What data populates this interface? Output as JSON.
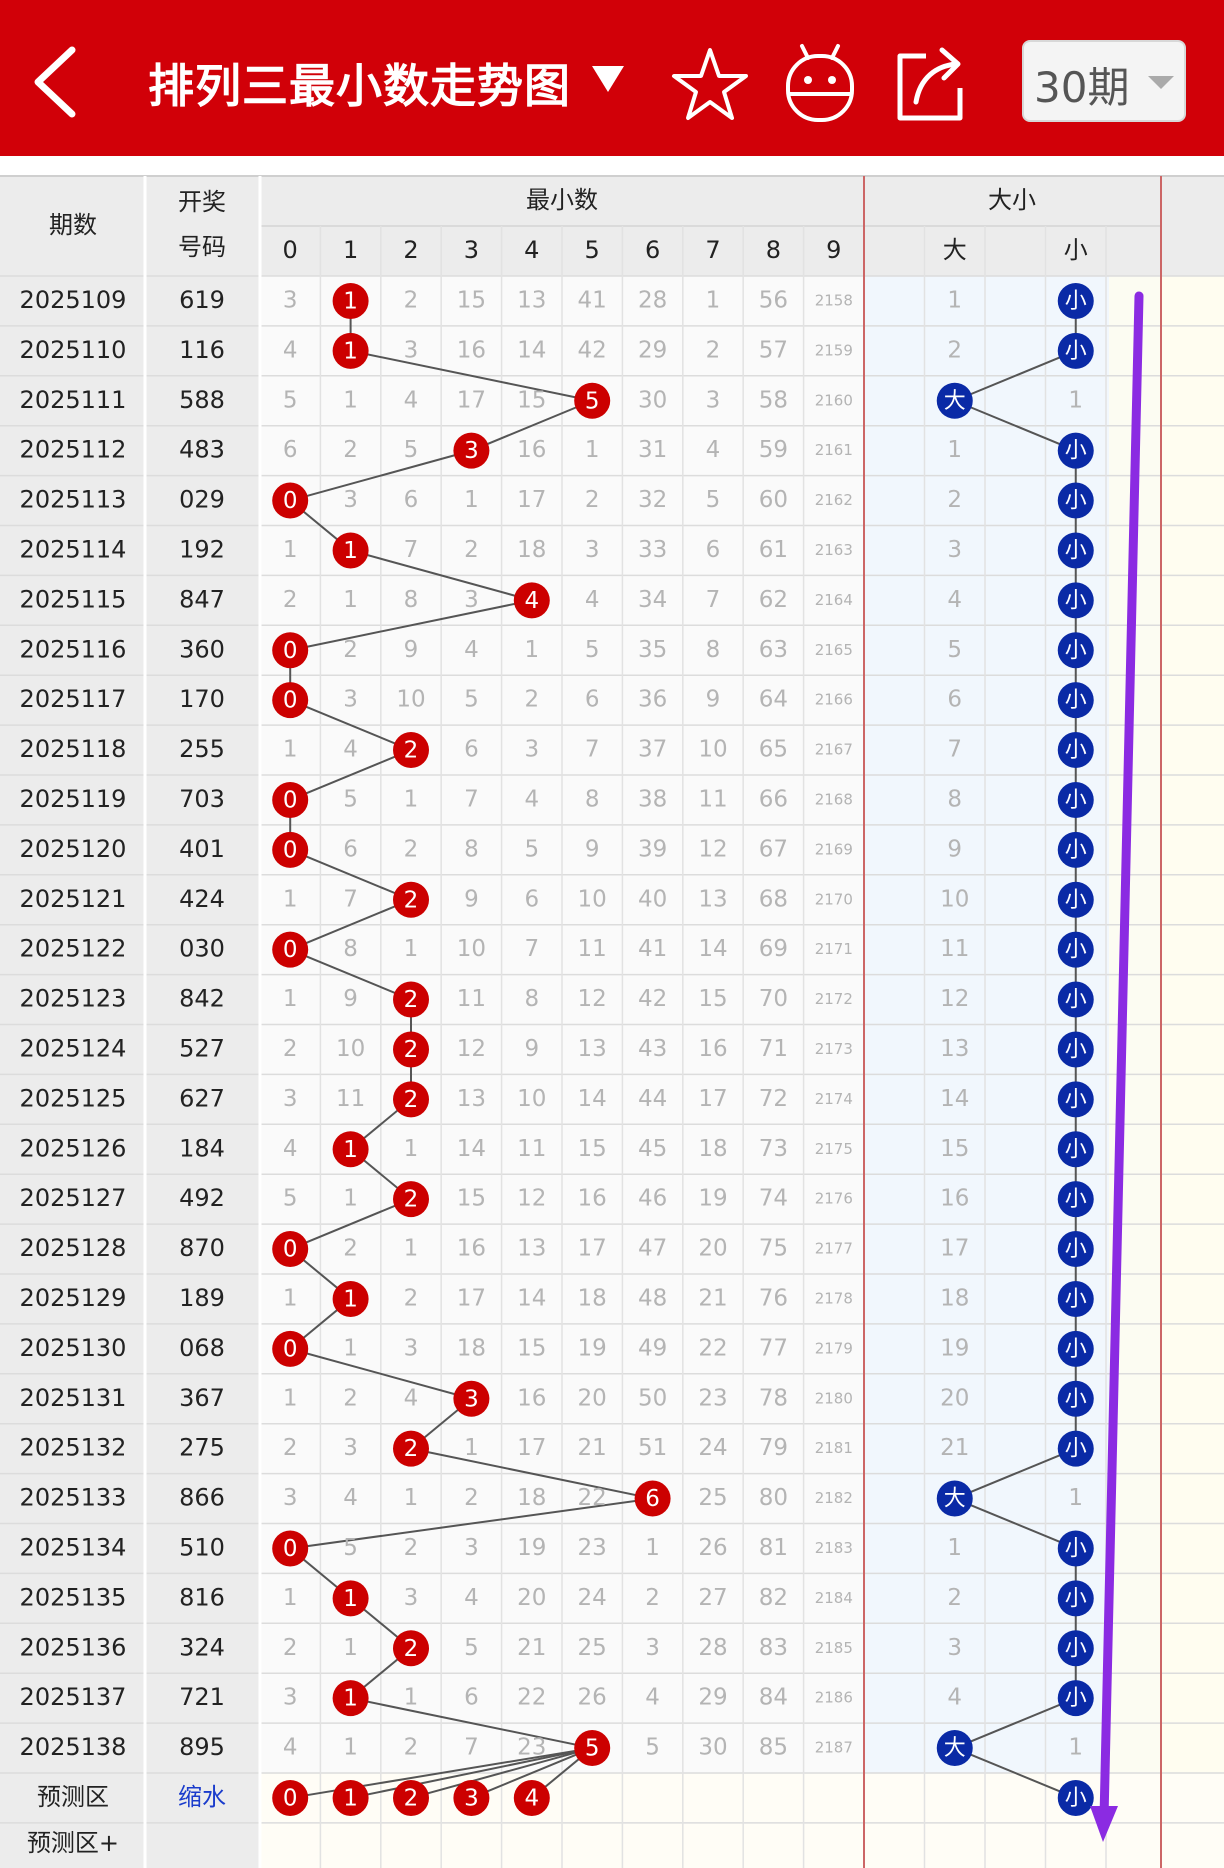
{
  "header": {
    "title": "排列三最小数走势图",
    "period_select": "30期",
    "icons": [
      "back-arrow-icon",
      "dropdown-triangle-icon",
      "star-icon",
      "robot-icon",
      "share-icon"
    ]
  },
  "table": {
    "col_period": "期数",
    "col_draw_1": "开奖",
    "col_draw_2": "号码",
    "group_min": "最小数",
    "group_size": "大小",
    "digit_headers": [
      "0",
      "1",
      "2",
      "3",
      "4",
      "5",
      "6",
      "7",
      "8",
      "9"
    ],
    "size_headers": [
      "大",
      "小"
    ],
    "big_label": "大",
    "small_label": "小",
    "rows": [
      {
        "period": "2025109",
        "draw": "619",
        "min": 1,
        "cells": [
          "3",
          "1",
          "2",
          "15",
          "13",
          "41",
          "28",
          "1",
          "56",
          "2158"
        ],
        "size": "small",
        "big_miss": "1",
        "small_miss": "小"
      },
      {
        "period": "2025110",
        "draw": "116",
        "min": 1,
        "cells": [
          "4",
          "1",
          "3",
          "16",
          "14",
          "42",
          "29",
          "2",
          "57",
          "2159"
        ],
        "size": "small",
        "big_miss": "2",
        "small_miss": "小"
      },
      {
        "period": "2025111",
        "draw": "588",
        "min": 5,
        "cells": [
          "5",
          "1",
          "4",
          "17",
          "15",
          "5",
          "30",
          "3",
          "58",
          "2160"
        ],
        "size": "big",
        "big_miss": "大",
        "small_miss": "1"
      },
      {
        "period": "2025112",
        "draw": "483",
        "min": 3,
        "cells": [
          "6",
          "2",
          "5",
          "3",
          "16",
          "1",
          "31",
          "4",
          "59",
          "2161"
        ],
        "size": "small",
        "big_miss": "1",
        "small_miss": "小"
      },
      {
        "period": "2025113",
        "draw": "029",
        "min": 0,
        "cells": [
          "0",
          "3",
          "6",
          "1",
          "17",
          "2",
          "32",
          "5",
          "60",
          "2162"
        ],
        "size": "small",
        "big_miss": "2",
        "small_miss": "小"
      },
      {
        "period": "2025114",
        "draw": "192",
        "min": 1,
        "cells": [
          "1",
          "1",
          "7",
          "2",
          "18",
          "3",
          "33",
          "6",
          "61",
          "2163"
        ],
        "size": "small",
        "big_miss": "3",
        "small_miss": "小"
      },
      {
        "period": "2025115",
        "draw": "847",
        "min": 4,
        "cells": [
          "2",
          "1",
          "8",
          "3",
          "4",
          "4",
          "34",
          "7",
          "62",
          "2164"
        ],
        "size": "small",
        "big_miss": "4",
        "small_miss": "小"
      },
      {
        "period": "2025116",
        "draw": "360",
        "min": 0,
        "cells": [
          "0",
          "2",
          "9",
          "4",
          "1",
          "5",
          "35",
          "8",
          "63",
          "2165"
        ],
        "size": "small",
        "big_miss": "5",
        "small_miss": "小"
      },
      {
        "period": "2025117",
        "draw": "170",
        "min": 0,
        "cells": [
          "0",
          "3",
          "10",
          "5",
          "2",
          "6",
          "36",
          "9",
          "64",
          "2166"
        ],
        "size": "small",
        "big_miss": "6",
        "small_miss": "小"
      },
      {
        "period": "2025118",
        "draw": "255",
        "min": 2,
        "cells": [
          "1",
          "4",
          "2",
          "6",
          "3",
          "7",
          "37",
          "10",
          "65",
          "2167"
        ],
        "size": "small",
        "big_miss": "7",
        "small_miss": "小"
      },
      {
        "period": "2025119",
        "draw": "703",
        "min": 0,
        "cells": [
          "0",
          "5",
          "1",
          "7",
          "4",
          "8",
          "38",
          "11",
          "66",
          "2168"
        ],
        "size": "small",
        "big_miss": "8",
        "small_miss": "小"
      },
      {
        "period": "2025120",
        "draw": "401",
        "min": 0,
        "cells": [
          "0",
          "6",
          "2",
          "8",
          "5",
          "9",
          "39",
          "12",
          "67",
          "2169"
        ],
        "size": "small",
        "big_miss": "9",
        "small_miss": "小"
      },
      {
        "period": "2025121",
        "draw": "424",
        "min": 2,
        "cells": [
          "1",
          "7",
          "2",
          "9",
          "6",
          "10",
          "40",
          "13",
          "68",
          "2170"
        ],
        "size": "small",
        "big_miss": "10",
        "small_miss": "小"
      },
      {
        "period": "2025122",
        "draw": "030",
        "min": 0,
        "cells": [
          "0",
          "8",
          "1",
          "10",
          "7",
          "11",
          "41",
          "14",
          "69",
          "2171"
        ],
        "size": "small",
        "big_miss": "11",
        "small_miss": "小"
      },
      {
        "period": "2025123",
        "draw": "842",
        "min": 2,
        "cells": [
          "1",
          "9",
          "2",
          "11",
          "8",
          "12",
          "42",
          "15",
          "70",
          "2172"
        ],
        "size": "small",
        "big_miss": "12",
        "small_miss": "小"
      },
      {
        "period": "2025124",
        "draw": "527",
        "min": 2,
        "cells": [
          "2",
          "10",
          "2",
          "12",
          "9",
          "13",
          "43",
          "16",
          "71",
          "2173"
        ],
        "size": "small",
        "big_miss": "13",
        "small_miss": "小"
      },
      {
        "period": "2025125",
        "draw": "627",
        "min": 2,
        "cells": [
          "3",
          "11",
          "2",
          "13",
          "10",
          "14",
          "44",
          "17",
          "72",
          "2174"
        ],
        "size": "small",
        "big_miss": "14",
        "small_miss": "小"
      },
      {
        "period": "2025126",
        "draw": "184",
        "min": 1,
        "cells": [
          "4",
          "1",
          "1",
          "14",
          "11",
          "15",
          "45",
          "18",
          "73",
          "2175"
        ],
        "size": "small",
        "big_miss": "15",
        "small_miss": "小"
      },
      {
        "period": "2025127",
        "draw": "492",
        "min": 2,
        "cells": [
          "5",
          "1",
          "2",
          "15",
          "12",
          "16",
          "46",
          "19",
          "74",
          "2176"
        ],
        "size": "small",
        "big_miss": "16",
        "small_miss": "小"
      },
      {
        "period": "2025128",
        "draw": "870",
        "min": 0,
        "cells": [
          "0",
          "2",
          "1",
          "16",
          "13",
          "17",
          "47",
          "20",
          "75",
          "2177"
        ],
        "size": "small",
        "big_miss": "17",
        "small_miss": "小"
      },
      {
        "period": "2025129",
        "draw": "189",
        "min": 1,
        "cells": [
          "1",
          "1",
          "2",
          "17",
          "14",
          "18",
          "48",
          "21",
          "76",
          "2178"
        ],
        "size": "small",
        "big_miss": "18",
        "small_miss": "小"
      },
      {
        "period": "2025130",
        "draw": "068",
        "min": 0,
        "cells": [
          "0",
          "1",
          "3",
          "18",
          "15",
          "19",
          "49",
          "22",
          "77",
          "2179"
        ],
        "size": "small",
        "big_miss": "19",
        "small_miss": "小"
      },
      {
        "period": "2025131",
        "draw": "367",
        "min": 3,
        "cells": [
          "1",
          "2",
          "4",
          "3",
          "16",
          "20",
          "50",
          "23",
          "78",
          "2180"
        ],
        "size": "small",
        "big_miss": "20",
        "small_miss": "小"
      },
      {
        "period": "2025132",
        "draw": "275",
        "min": 2,
        "cells": [
          "2",
          "3",
          "2",
          "1",
          "17",
          "21",
          "51",
          "24",
          "79",
          "2181"
        ],
        "size": "small",
        "big_miss": "21",
        "small_miss": "小"
      },
      {
        "period": "2025133",
        "draw": "866",
        "min": 6,
        "cells": [
          "3",
          "4",
          "1",
          "2",
          "18",
          "22",
          "6",
          "25",
          "80",
          "2182"
        ],
        "size": "big",
        "big_miss": "大",
        "small_miss": "1"
      },
      {
        "period": "2025134",
        "draw": "510",
        "min": 0,
        "cells": [
          "0",
          "5",
          "2",
          "3",
          "19",
          "23",
          "1",
          "26",
          "81",
          "2183"
        ],
        "size": "small",
        "big_miss": "1",
        "small_miss": "小"
      },
      {
        "period": "2025135",
        "draw": "816",
        "min": 1,
        "cells": [
          "1",
          "1",
          "3",
          "4",
          "20",
          "24",
          "2",
          "27",
          "82",
          "2184"
        ],
        "size": "small",
        "big_miss": "2",
        "small_miss": "小"
      },
      {
        "period": "2025136",
        "draw": "324",
        "min": 2,
        "cells": [
          "2",
          "1",
          "2",
          "5",
          "21",
          "25",
          "3",
          "28",
          "83",
          "2185"
        ],
        "size": "small",
        "big_miss": "3",
        "small_miss": "小"
      },
      {
        "period": "2025137",
        "draw": "721",
        "min": 1,
        "cells": [
          "3",
          "1",
          "1",
          "6",
          "22",
          "26",
          "4",
          "29",
          "84",
          "2186"
        ],
        "size": "small",
        "big_miss": "4",
        "small_miss": "小"
      },
      {
        "period": "2025138",
        "draw": "895",
        "min": 5,
        "cells": [
          "4",
          "1",
          "2",
          "7",
          "23",
          "5",
          "5",
          "30",
          "85",
          "2187"
        ],
        "size": "big",
        "big_miss": "大",
        "small_miss": "1"
      }
    ],
    "predict_label": "预测区",
    "predict_shrink": "缩水",
    "predict_balls": [
      "0",
      "1",
      "2",
      "3",
      "4"
    ],
    "predict_small": "小",
    "predict_plus_label": "预测区+"
  },
  "colors": {
    "header_red": "#d10008",
    "ball_red": "#cc0000",
    "ball_blue": "#0a2aa6",
    "line_gray": "#555555",
    "arrow_purple": "#8b2be2"
  }
}
